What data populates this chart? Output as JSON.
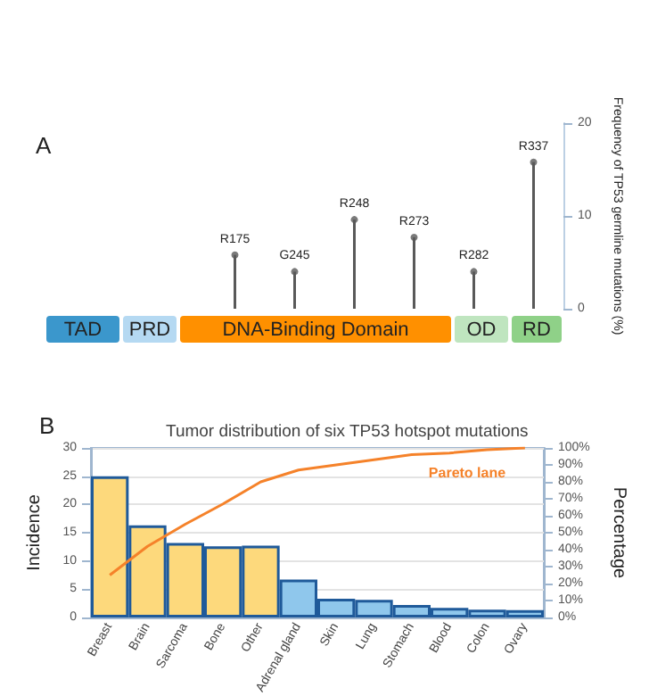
{
  "chart_data": [
    {
      "type": "lollipop",
      "ylabel": "Frequency of TP53 germline mutations (%)",
      "categories": [
        "R175",
        "G245",
        "R248",
        "R273",
        "R282",
        "R337"
      ],
      "values": [
        5.8,
        4,
        9.6,
        7.7,
        4,
        15.8
      ],
      "color": "#595959",
      "ylim": [
        0,
        20
      ],
      "yticks": [
        0,
        10,
        20
      ],
      "grid": false,
      "annotations": [
        "A",
        "TAD",
        "PRD",
        "DNA-Binding Domain",
        "OD",
        "RD"
      ]
    },
    {
      "type": "bar",
      "title": "Tumor distribution of six TP53 hotspot mutations",
      "ylabel": "Incidence",
      "y2label": "Percentage",
      "annotations": [
        "B"
      ],
      "categories": [
        "Breast",
        "Brain",
        "Sarcoma",
        "Bone",
        "Other",
        "Adrenal gland",
        "Skin",
        "Lung",
        "Stomach",
        "Blood",
        "Colon",
        "Ovary"
      ],
      "series": [
        {
          "type": "bar",
          "colors": [
            "#fdd97c",
            "#fdd97c",
            "#fdd97c",
            "#fdd97c",
            "#fdd97c",
            "#8fc7ec",
            "#8fc7ec",
            "#8fc7ec",
            "#8fc7ec",
            "#8fc7ec",
            "#8fc7ec",
            "#8fc7ec"
          ],
          "values": [
            25,
            16.3,
            13.2,
            12.6,
            12.7,
            6.7,
            3.3,
            3.1,
            2.2,
            1.7,
            1.4,
            1.3
          ]
        },
        {
          "type": "line",
          "name": "Pareto lane",
          "color": "#f5822a",
          "axis": "y2",
          "values": [
            25,
            42,
            55,
            67,
            80,
            87,
            90,
            93,
            96,
            97,
            99,
            100
          ]
        }
      ],
      "ylim": [
        0,
        30
      ],
      "yticks": [
        0,
        5,
        10,
        15,
        20,
        25,
        30
      ],
      "y2lim": [
        0,
        100
      ],
      "y2ticks": [
        {
          "value": 0,
          "label": "0%"
        },
        {
          "value": 10,
          "label": "10%"
        },
        {
          "value": 20,
          "label": "20%"
        },
        {
          "value": 30,
          "label": "30%"
        },
        {
          "value": 40,
          "label": "40%"
        },
        {
          "value": 50,
          "label": "50%"
        },
        {
          "value": 60,
          "label": "60%"
        },
        {
          "value": 70,
          "label": "70%"
        },
        {
          "value": 80,
          "label": "80%"
        },
        {
          "value": 90,
          "label": "90%"
        },
        {
          "value": 100,
          "label": "100%"
        }
      ],
      "grid": "y",
      "legend": false
    }
  ]
}
